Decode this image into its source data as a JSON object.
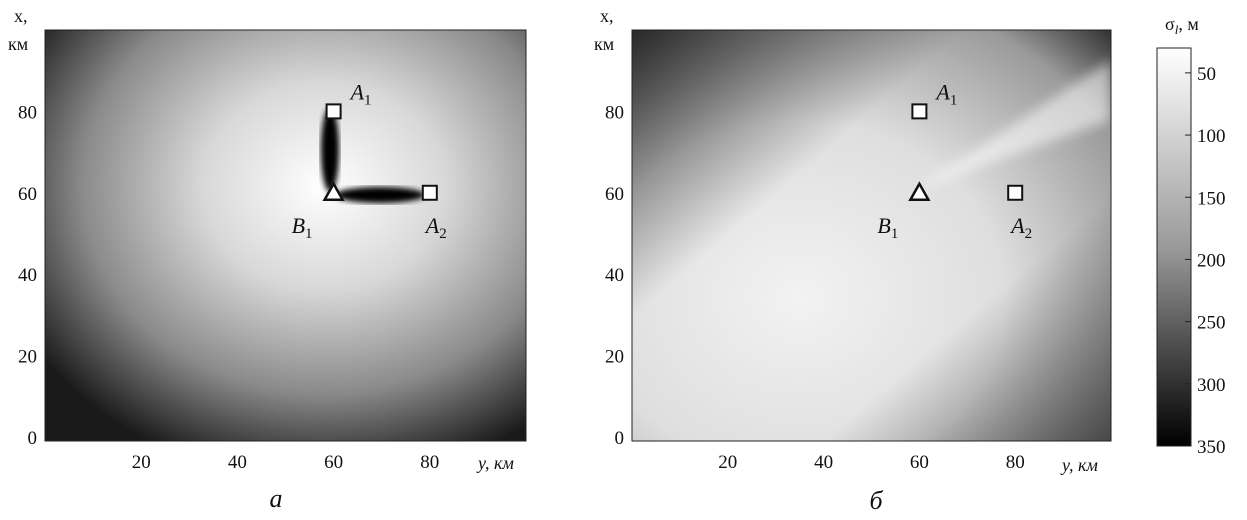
{
  "chart_data": [
    {
      "type": "heatmap",
      "panel_label": "а",
      "xlabel": "y, км",
      "ylabel_line1": "x,",
      "ylabel_line2": "км",
      "x_ticks": [
        "20",
        "40",
        "60",
        "80"
      ],
      "y_ticks": [
        "80",
        "60",
        "40",
        "20",
        "0"
      ],
      "xlim": [
        0,
        100
      ],
      "ylim": [
        -1,
        100
      ],
      "stations": [
        {
          "name": "A",
          "sub": "1",
          "shape": "square",
          "y": 60,
          "x": 80
        },
        {
          "name": "A",
          "sub": "2",
          "shape": "square",
          "y": 80,
          "x": 60
        },
        {
          "name": "B",
          "sub": "1",
          "shape": "triangle",
          "y": 60,
          "x": 60
        }
      ],
      "colorbar_value_range_m": [
        50,
        350
      ],
      "description_values": {
        "min_sigma_center": 60,
        "edge_sigma_max": 340
      }
    },
    {
      "type": "heatmap",
      "panel_label": "б",
      "xlabel": "y, км",
      "ylabel_line1": "x,",
      "ylabel_line2": "км",
      "x_ticks": [
        "20",
        "40",
        "60",
        "80"
      ],
      "y_ticks": [
        "80",
        "60",
        "40",
        "20",
        "0"
      ],
      "xlim": [
        0,
        100
      ],
      "ylim": [
        -1,
        100
      ],
      "stations": [
        {
          "name": "A",
          "sub": "1",
          "shape": "square",
          "y": 60,
          "x": 80
        },
        {
          "name": "A",
          "sub": "2",
          "shape": "square",
          "y": 80,
          "x": 60
        },
        {
          "name": "B",
          "sub": "1",
          "shape": "triangle",
          "y": 60,
          "x": 60
        }
      ],
      "colorbar_value_range_m": [
        50,
        350
      ]
    }
  ],
  "colorbar": {
    "title_main": "σ",
    "title_sub": "l",
    "title_unit": ", м",
    "ticks": [
      "50",
      "100",
      "150",
      "200",
      "250",
      "300",
      "350"
    ],
    "min": 30,
    "max": 350
  }
}
